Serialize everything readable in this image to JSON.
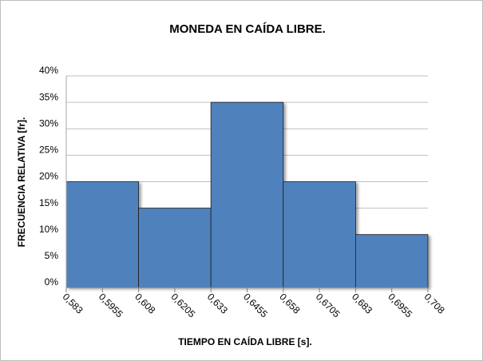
{
  "chart_data": {
    "type": "histogram",
    "title": "MONEDA EN CAÍDA LIBRE.",
    "x_label": "TIEMPO EN CAÍDA LIBRE [s].",
    "y_label": "FRECUENCIA RELATIVA [fr].",
    "bins": [
      0.583,
      0.608,
      0.633,
      0.658,
      0.683,
      0.708
    ],
    "values": [
      20,
      15,
      35,
      20,
      10
    ],
    "color": "#4f81bd",
    "xlim": [
      0.583,
      0.708
    ],
    "xticks": [
      {
        "value": 0.583,
        "label": "0,583"
      },
      {
        "value": 0.5955,
        "label": "0,5955"
      },
      {
        "value": 0.608,
        "label": "0,608"
      },
      {
        "value": 0.6205,
        "label": "0,6205"
      },
      {
        "value": 0.633,
        "label": "0,633"
      },
      {
        "value": 0.6455,
        "label": "0,6455"
      },
      {
        "value": 0.658,
        "label": "0,658"
      },
      {
        "value": 0.6705,
        "label": "0,6705"
      },
      {
        "value": 0.683,
        "label": "0,683"
      },
      {
        "value": 0.6955,
        "label": "0,6955"
      },
      {
        "value": 0.708,
        "label": "0,708"
      }
    ],
    "ylim": [
      0,
      40
    ],
    "yticks": [
      {
        "value": 0,
        "label": "0%"
      },
      {
        "value": 5,
        "label": "5%"
      },
      {
        "value": 10,
        "label": "10%"
      },
      {
        "value": 15,
        "label": "15%"
      },
      {
        "value": 20,
        "label": "20%"
      },
      {
        "value": 25,
        "label": "25%"
      },
      {
        "value": 30,
        "label": "30%"
      },
      {
        "value": 35,
        "label": "35%"
      },
      {
        "value": 40,
        "label": "40%"
      }
    ],
    "grid": true
  }
}
